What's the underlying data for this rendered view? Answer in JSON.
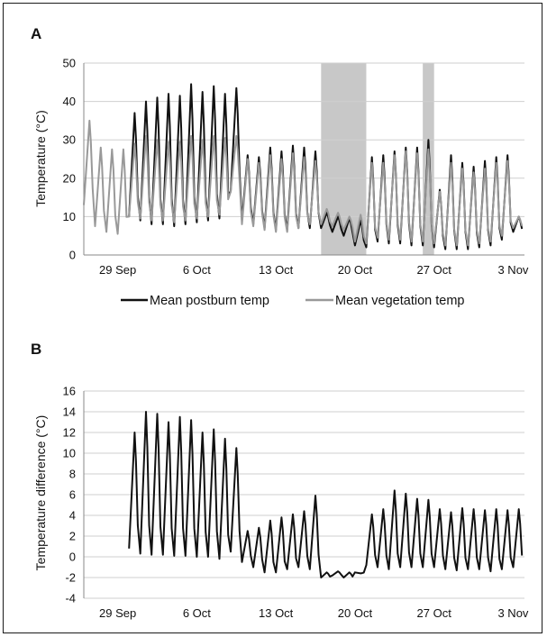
{
  "chart_data": [
    {
      "panel": "A",
      "type": "line",
      "ylabel": "Temperature (°C)",
      "ylim": [
        0,
        50
      ],
      "yticks": [
        0,
        10,
        20,
        30,
        40,
        50
      ],
      "xlim": [
        "2014-09-26",
        "2014-11-04"
      ],
      "xtick_labels": [
        "29 Sep",
        "6 Oct",
        "13 Oct",
        "20 Oct",
        "27 Oct",
        "3 Nov"
      ],
      "xtick_dates": [
        "2014-09-29",
        "2014-10-06",
        "2014-10-13",
        "2014-10-20",
        "2014-10-27",
        "2014-11-03"
      ],
      "grid": true,
      "legend_position": "bottom",
      "shaded_periods": [
        {
          "from": "2014-10-17",
          "to": "2014-10-21"
        },
        {
          "from": "2014-10-26",
          "to": "2014-10-27"
        }
      ],
      "series": [
        {
          "name": "Mean postburn temp",
          "color": "#111111",
          "daily_max": [
            null,
            null,
            null,
            null,
            37,
            40,
            41,
            42,
            41.5,
            44.5,
            42.5,
            44,
            42,
            43.5,
            26,
            25.5,
            28,
            27,
            28.5,
            28,
            27,
            11,
            10,
            9.5,
            9,
            25.5,
            26,
            27,
            28,
            28,
            30,
            17,
            26,
            24,
            23,
            24.5,
            25.5,
            26,
            10
          ],
          "daily_min": [
            null,
            null,
            null,
            null,
            10,
            9,
            8,
            8,
            7.5,
            8,
            8.5,
            9,
            9.5,
            16.5,
            9,
            8,
            7,
            6.5,
            6.5,
            7,
            7,
            7,
            6,
            5,
            2.5,
            2,
            3.5,
            3,
            3,
            2.5,
            2.5,
            2,
            1.5,
            1.5,
            1.5,
            2,
            2.5,
            4,
            6
          ]
        },
        {
          "name": "Mean vegetation temp",
          "color": "#999999",
          "daily_max": [
            35,
            28,
            27.5,
            27.5,
            29,
            31,
            30,
            29.5,
            29.5,
            31,
            30,
            31,
            30.5,
            31,
            25,
            24,
            26,
            25,
            26.5,
            25.5,
            24.5,
            12,
            11,
            10,
            10.5,
            24,
            24,
            26,
            27,
            26.5,
            27.5,
            16.5,
            24,
            22.5,
            21.5,
            22.5,
            24,
            24.5,
            10
          ],
          "daily_min": [
            13,
            7.5,
            6,
            5.5,
            10,
            9.5,
            9,
            9,
            8.5,
            9,
            9.5,
            10,
            10.5,
            16.5,
            8,
            7.5,
            6.5,
            6,
            6,
            7,
            8,
            8,
            7.5,
            6.5,
            3.5,
            3,
            4.5,
            4,
            4,
            3.5,
            3.5,
            3,
            2.5,
            2.5,
            2.5,
            3,
            3.5,
            5,
            7
          ]
        }
      ]
    },
    {
      "panel": "B",
      "type": "line",
      "ylabel": "Temperature  difference (°C)",
      "ylim": [
        -4,
        16
      ],
      "yticks": [
        -4,
        -2,
        0,
        2,
        4,
        6,
        8,
        10,
        12,
        14,
        16
      ],
      "xlim": [
        "2014-09-26",
        "2014-11-04"
      ],
      "xtick_labels": [
        "29 Sep",
        "6 Oct",
        "13 Oct",
        "20 Oct",
        "27 Oct",
        "3 Nov"
      ],
      "xtick_dates": [
        "2014-09-29",
        "2014-10-06",
        "2014-10-13",
        "2014-10-20",
        "2014-10-27",
        "2014-11-03"
      ],
      "grid": true,
      "series": [
        {
          "color": "#111111",
          "start_date": "2014-09-30",
          "daily_max": [
            12,
            14,
            13.8,
            13,
            13.5,
            13.2,
            12,
            12.3,
            11.4,
            10.5,
            2.5,
            2.8,
            3.5,
            3.8,
            4.1,
            4.4,
            5.9,
            -1.5,
            -1.4,
            -1.5,
            -1.6,
            4.1,
            4.6,
            6.4,
            6.1,
            5.6,
            5.5,
            4.6,
            4.3,
            4.7,
            4.6,
            4.5,
            4.6,
            4.5,
            4.6
          ],
          "daily_min": [
            0.8,
            0.3,
            0.2,
            0.2,
            0.1,
            0.1,
            0,
            0,
            -0.2,
            0.5,
            -0.5,
            -1,
            -1.5,
            -1.5,
            -1.2,
            -1,
            -1.2,
            -2,
            -1.8,
            -2,
            -1.5,
            -0.8,
            -1,
            -1.2,
            -1,
            -1,
            -1,
            -1,
            -1.2,
            -1.3,
            -1.2,
            -1.2,
            -1.4,
            -1.2,
            -1
          ]
        }
      ]
    }
  ],
  "panel_labels": {
    "a": "A",
    "b": "B"
  },
  "legend": {
    "postburn": "Mean postburn temp",
    "vegetation": "Mean vegetation temp"
  }
}
